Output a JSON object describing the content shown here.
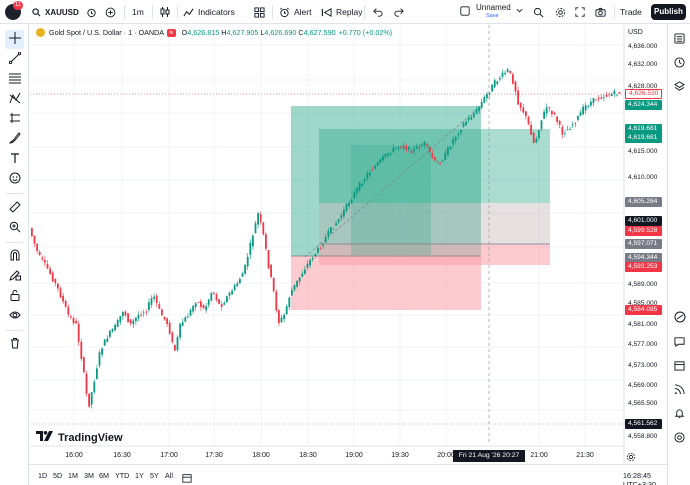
{
  "topbar": {
    "notification_count": "11",
    "symbol": "XAUUSD",
    "interval": "1m",
    "indicators_label": "Indicators",
    "alert_label": "Alert",
    "replay_label": "Replay",
    "layout_name": "Unnamed",
    "save_label": "Save",
    "trade_label": "Trade",
    "publish_label": "Publish"
  },
  "legend": {
    "title": "Gold Spot / U.S. Dollar · 1 · OANDA",
    "o_label": "O",
    "o_value": "4,626.815",
    "h_label": "H",
    "h_value": "4,627.905",
    "l_label": "L",
    "l_value": "4,626.690",
    "c_label": "C",
    "c_value": "4,627.590",
    "change": "+0.770 (+0.02%)"
  },
  "price_axis": {
    "currency": "USD",
    "ticks": [
      "4,636.000",
      "4,632.000",
      "4,628.000",
      "4,615.000",
      "4,610.000",
      "4,589.000",
      "4,585.000",
      "4,581.000",
      "4,577.000",
      "4,573.000",
      "4,569.000",
      "4,565.500",
      "4,558.800"
    ],
    "labels": [
      {
        "text": "4,626.530",
        "kind": "current"
      },
      {
        "text": "4,624.344",
        "kind": "green"
      },
      {
        "text": "4,619.681",
        "kind": "green"
      },
      {
        "text": "4,619.681",
        "kind": "green"
      },
      {
        "text": "4,605.264",
        "kind": "gray"
      },
      {
        "text": "4,601.000",
        "kind": "dark"
      },
      {
        "text": "4,599.528",
        "kind": "red"
      },
      {
        "text": "4,597.071",
        "kind": "gray"
      },
      {
        "text": "4,594.344",
        "kind": "gray"
      },
      {
        "text": "4,593.253",
        "kind": "red"
      },
      {
        "text": "4,584.085",
        "kind": "red"
      },
      {
        "text": "4,561.562",
        "kind": "dark"
      }
    ]
  },
  "time_axis": {
    "ticks": [
      "16:00",
      "16:30",
      "17:00",
      "17:30",
      "18:00",
      "18:30",
      "19:00",
      "19:30",
      "20:00",
      "21:00",
      "21:30"
    ],
    "crosshair_label": "Fri 21 Aug '26   20:27"
  },
  "branding": "TradingView",
  "bottombar": {
    "ranges": [
      "1D",
      "5D",
      "1M",
      "3M",
      "6M",
      "YTD",
      "1Y",
      "5Y",
      "All"
    ],
    "clock": "16:28:45 UTC+3:30"
  },
  "colors": {
    "up": "#089981",
    "down": "#f23645",
    "profit_zone": "#2aa889",
    "loss_zone": "#f7a1a8",
    "current_price": "#f23645"
  }
}
